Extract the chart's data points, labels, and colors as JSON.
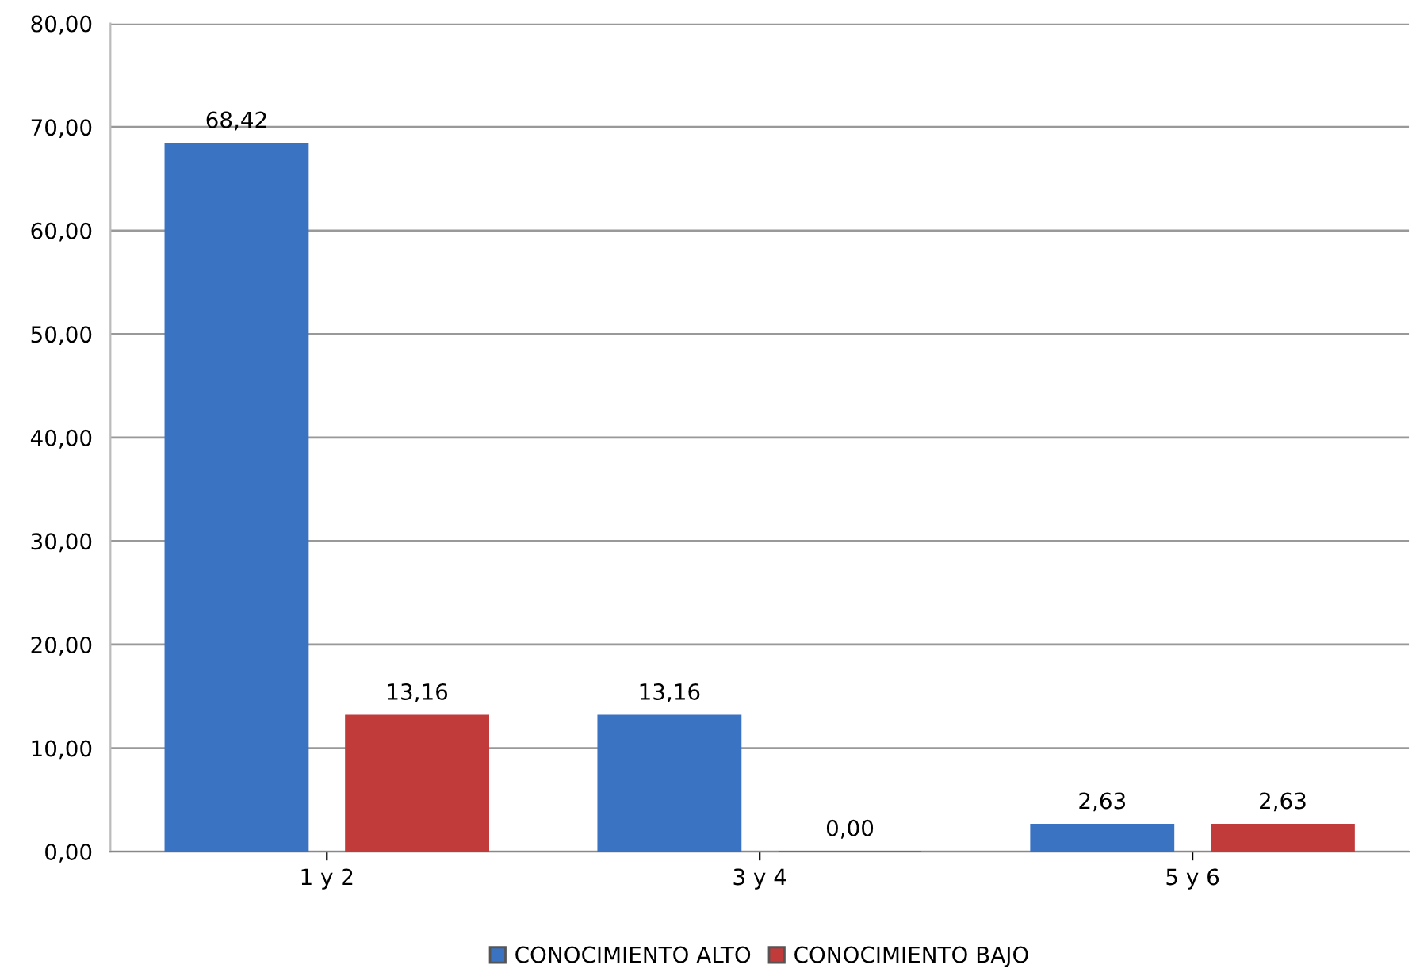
{
  "chart_data": {
    "type": "bar",
    "categories": [
      "1 y 2",
      "3 y 4",
      "5 y 6"
    ],
    "series": [
      {
        "name": "CONOCIMIENTO ALTO",
        "color": "#3b73c3",
        "values": [
          68.42,
          13.16,
          2.63
        ],
        "value_labels": [
          "68,42",
          "13,16",
          "2,63"
        ]
      },
      {
        "name": "CONOCIMIENTO BAJO",
        "color": "#c23b3b",
        "values": [
          13.16,
          0.0,
          2.63
        ],
        "value_labels": [
          "13,16",
          "0,00",
          "2,63"
        ]
      }
    ],
    "ylim": [
      0,
      80
    ],
    "yticks": [
      {
        "value": 0,
        "label": "0,00"
      },
      {
        "value": 10,
        "label": "10,00"
      },
      {
        "value": 20,
        "label": "20,00"
      },
      {
        "value": 30,
        "label": "30,00"
      },
      {
        "value": 40,
        "label": "40,00"
      },
      {
        "value": 50,
        "label": "50,00"
      },
      {
        "value": 60,
        "label": "60,00"
      },
      {
        "value": 70,
        "label": "70,00"
      },
      {
        "value": 80,
        "label": "80,00"
      }
    ],
    "grid": "y",
    "legend": "bottom"
  }
}
